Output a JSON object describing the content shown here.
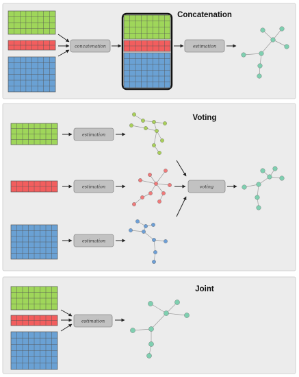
{
  "colors": {
    "panel_bg": "#ececec",
    "panel_border": "#c9c9c9",
    "green": "#9fd65a",
    "red": "#f25e5e",
    "blue": "#6aa1d4",
    "grid_line": "#555555",
    "box_fill": "#c2c2c2",
    "box_border": "#8a8a8a",
    "graph_teal": "#7fcfb0",
    "graph_green": "#a9cf5a",
    "graph_red": "#f07a7a",
    "graph_blue": "#6d9fd6"
  },
  "panels": [
    {
      "title": "Concatenation",
      "process_label": "concatenation",
      "estimation_label": "estimation"
    },
    {
      "title": "Voting",
      "estimation_labels": [
        "estimation",
        "estimation",
        "estimation"
      ],
      "voting_label": "voting"
    },
    {
      "title": "Joint",
      "estimation_label": "estimation"
    }
  ]
}
